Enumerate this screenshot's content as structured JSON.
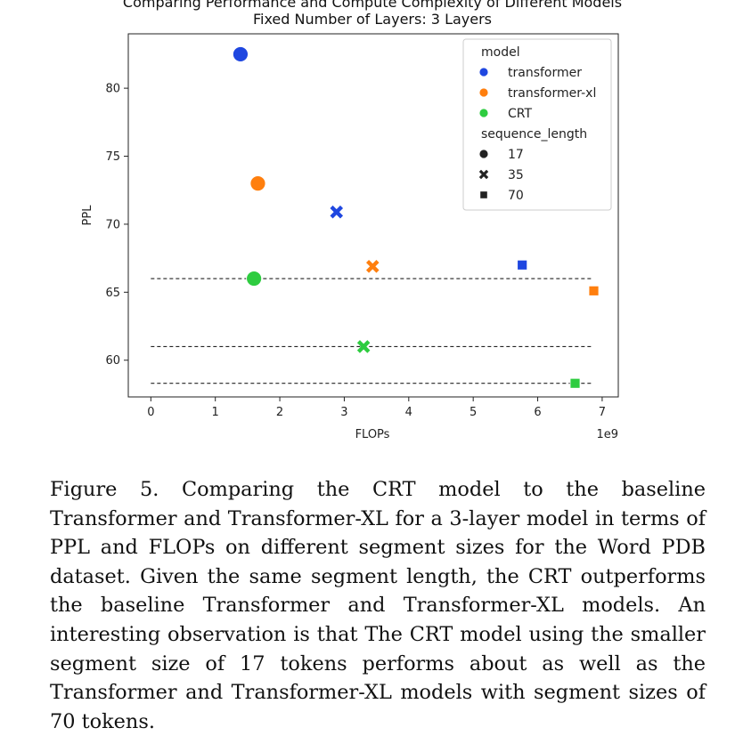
{
  "chart_data": {
    "type": "scatter",
    "title": "Comparing Performance and Compute Complexity of Different Models",
    "subtitle": "Fixed Number of Layers: 3 Layers",
    "xlabel": "FLOPs",
    "ylabel": "PPL",
    "x_offset_label": "1e9",
    "xlim": [
      -0.35,
      7.25
    ],
    "ylim": [
      57.3,
      84.0
    ],
    "x_ticks": [
      0,
      1,
      2,
      3,
      4,
      5,
      6,
      7
    ],
    "y_ticks": [
      60,
      65,
      70,
      75,
      80
    ],
    "grid": false,
    "legend_position": "top-right",
    "legend": {
      "hue_title": "model",
      "hue_entries": [
        {
          "name": "transformer",
          "color": "#1f47e0"
        },
        {
          "name": "transformer-xl",
          "color": "#ff7f0e"
        },
        {
          "name": "CRT",
          "color": "#2ecc40"
        }
      ],
      "style_title": "sequence_length",
      "style_entries": [
        {
          "name": "17",
          "marker": "circle"
        },
        {
          "name": "35",
          "marker": "x"
        },
        {
          "name": "70",
          "marker": "square"
        }
      ]
    },
    "points": [
      {
        "model": "transformer",
        "sequence_length": "17",
        "x": 1.39,
        "y": 82.5,
        "size": "large"
      },
      {
        "model": "transformer",
        "sequence_length": "35",
        "x": 2.88,
        "y": 70.9,
        "size": "medium"
      },
      {
        "model": "transformer",
        "sequence_length": "70",
        "x": 5.76,
        "y": 67.0,
        "size": "small"
      },
      {
        "model": "transformer-xl",
        "sequence_length": "17",
        "x": 1.66,
        "y": 73.0,
        "size": "large"
      },
      {
        "model": "transformer-xl",
        "sequence_length": "35",
        "x": 3.44,
        "y": 66.9,
        "size": "medium"
      },
      {
        "model": "transformer-xl",
        "sequence_length": "70",
        "x": 6.87,
        "y": 65.1,
        "size": "small"
      },
      {
        "model": "CRT",
        "sequence_length": "17",
        "x": 1.6,
        "y": 66.0,
        "size": "large"
      },
      {
        "model": "CRT",
        "sequence_length": "35",
        "x": 3.3,
        "y": 61.0,
        "size": "medium"
      },
      {
        "model": "CRT",
        "sequence_length": "70",
        "x": 6.58,
        "y": 58.3,
        "size": "small"
      }
    ],
    "reference_lines": [
      {
        "y": 66.0,
        "x_start": 0.0,
        "x_end": 6.85,
        "style": "dashed"
      },
      {
        "y": 61.0,
        "x_start": 0.0,
        "x_end": 6.85,
        "style": "dashed"
      },
      {
        "y": 58.3,
        "x_start": 0.0,
        "x_end": 6.85,
        "style": "dashed"
      }
    ]
  },
  "caption": "Figure 5. Comparing the CRT model to the baseline Transformer and Transformer-XL for a 3-layer model in terms of PPL and FLOPs on different segment sizes for the Word PDB dataset. Given the same segment length, the CRT outperforms the baseline Transformer and Transformer-XL models. An interesting observation is that The CRT model using the smaller segment size of 17 tokens performs about as well as the Transformer and Transformer-XL models with segment sizes of 70 tokens."
}
